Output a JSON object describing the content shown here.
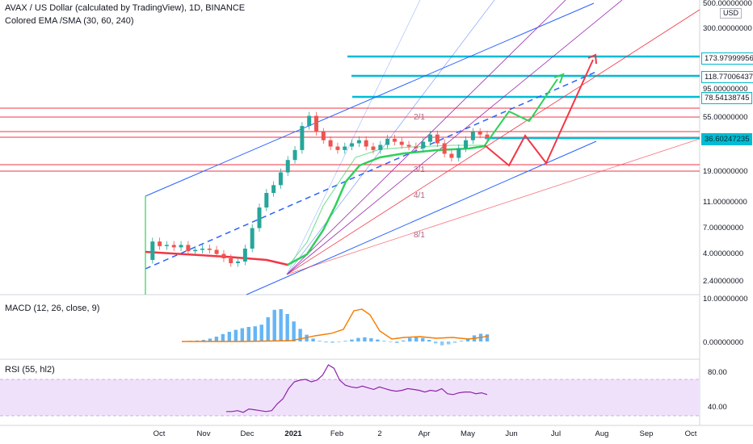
{
  "header": {
    "symbol": "AVAX / US Dollar (calculated by TradingView), 1D, BINANCE",
    "indicator": "Colored EMA /SMA (30, 60, 240)"
  },
  "currency": "USD",
  "panes": {
    "macd_label": "MACD (12, 26, close, 9)",
    "rsi_label": "RSI (55, hl2)"
  },
  "colors": {
    "cyan": "#00bcd4",
    "red": "#f23645",
    "green": "#2fd05a",
    "blue": "#2962ff",
    "purple": "#9c27b0",
    "rsi_band": "#f0e1fb"
  },
  "chart_data": [
    {
      "type": "line",
      "scale": "log",
      "x_ticks": [
        "Oct",
        "Nov",
        "Dec",
        "2021",
        "Feb",
        "2",
        "Apr",
        "May",
        "Jun",
        "Jul",
        "Aug",
        "Sep",
        "Oct"
      ],
      "y_ticks": [
        "500.00000000",
        "300.00000000",
        "95.00000000",
        "55.00000000",
        "19.00000000",
        "11.00000000",
        "7.00000000",
        "4.00000000",
        "2.40000000"
      ],
      "price_tags": [
        {
          "value": "173.97999956",
          "type": "target"
        },
        {
          "value": "118.77006437",
          "type": "target"
        },
        {
          "value": "78.54138745",
          "type": "target"
        },
        {
          "value": "36.60247235",
          "type": "current"
        }
      ],
      "fib_labels": [
        "2/1",
        "3/1",
        "4/1",
        "8/1"
      ],
      "series": [
        {
          "values": [
            3.2,
            4.6,
            4.2,
            4.3,
            4.1,
            4.3,
            3.8,
            3.9,
            4.0,
            3.9,
            3.6,
            3.3,
            3.0,
            3.1,
            4.0,
            6.0,
            9.0,
            12.0,
            14.0,
            18.0,
            23.0,
            28.0,
            45.0,
            55.0,
            40.0,
            34.0,
            30.0,
            28.0,
            30.0,
            32.0,
            34.0,
            30.0,
            28.0,
            31.0,
            35.0,
            33.0,
            31.0,
            30.0,
            29.0,
            33.0,
            38.0,
            32.0,
            26.0,
            24.0,
            29.0,
            34.0,
            40.0,
            38.0,
            36.0
          ]
        }
      ]
    },
    {
      "type": "bar",
      "ylabel": "",
      "y_ticks": [
        "10.00000000",
        "0.00000000"
      ],
      "values": [
        0.1,
        0.2,
        0.3,
        0.5,
        0.9,
        1.5,
        2.3,
        3.0,
        3.6,
        4.1,
        4.5,
        4.7,
        5.2,
        7.5,
        9.8,
        10.0,
        8.5,
        6.2,
        3.9,
        2.1,
        0.9,
        0.2,
        -0.3,
        -0.4,
        -0.2,
        0.2,
        0.6,
        1.1,
        1.3,
        1.0,
        0.6,
        0.2,
        -0.2,
        -0.5,
        0.3,
        1.1,
        1.4,
        1.1,
        0.5,
        -0.6,
        -1.2,
        -0.9,
        -0.4,
        0.2,
        1.0,
        1.9,
        2.4,
        2.2
      ]
    },
    {
      "type": "line",
      "y_ticks": [
        "80.00",
        "40.00"
      ],
      "values": [
        35,
        35,
        36,
        34,
        38,
        37,
        36,
        35,
        36,
        44,
        50,
        62,
        70,
        72,
        73,
        70,
        72,
        78,
        90,
        86,
        72,
        66,
        64,
        63,
        65,
        63,
        61,
        64,
        62,
        60,
        59,
        60,
        62,
        61,
        60,
        58,
        60,
        59,
        62,
        56,
        55,
        57,
        58,
        58,
        56,
        57,
        55
      ]
    }
  ]
}
